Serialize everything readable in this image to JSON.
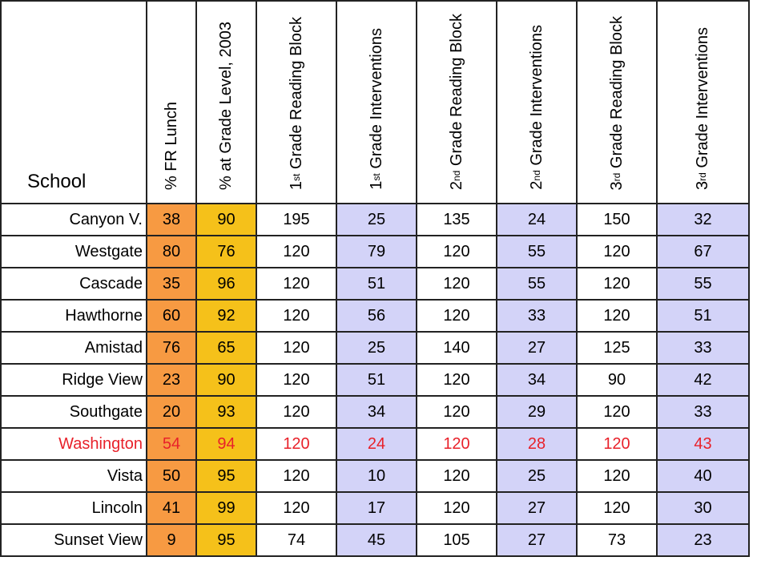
{
  "table": {
    "headers": {
      "school": "School",
      "fr_lunch": "% FR Lunch",
      "grade_level": "% at Grade Level, 2003",
      "g1_block": {
        "num": "1",
        "ord": "st",
        "text": "Grade Reading Block"
      },
      "g1_interv": {
        "num": "1",
        "ord": "st",
        "text": "Grade Interventions"
      },
      "g2_block": {
        "num": "2",
        "ord": "nd",
        "text": "Grade Reading Block"
      },
      "g2_interv": {
        "num": "2",
        "ord": "nd",
        "text": "Grade Interventions"
      },
      "g3_block": {
        "num": "3",
        "ord": "rd",
        "text": "Grade Reading Block"
      },
      "g3_interv": {
        "num": "3",
        "ord": "rd",
        "text": "Grade Interventions"
      }
    },
    "rows": [
      {
        "school": "Canyon V.",
        "values": [
          "38",
          "90",
          "195",
          "25",
          "135",
          "24",
          "150",
          "32"
        ]
      },
      {
        "school": "Westgate",
        "values": [
          "80",
          "76",
          "120",
          "79",
          "120",
          "55",
          "120",
          "67"
        ]
      },
      {
        "school": "Cascade",
        "values": [
          "35",
          "96",
          "120",
          "51",
          "120",
          "55",
          "120",
          "55"
        ]
      },
      {
        "school": "Hawthorne",
        "values": [
          "60",
          "92",
          "120",
          "56",
          "120",
          "33",
          "120",
          "51"
        ]
      },
      {
        "school": "Amistad",
        "values": [
          "76",
          "65",
          "120",
          "25",
          "140",
          "27",
          "125",
          "33"
        ]
      },
      {
        "school": "Ridge View",
        "values": [
          "23",
          "90",
          "120",
          "51",
          "120",
          "34",
          "90",
          "42"
        ]
      },
      {
        "school": "Southgate",
        "values": [
          "20",
          "93",
          "120",
          "34",
          "120",
          "29",
          "120",
          "33"
        ]
      },
      {
        "school": "Washington",
        "values": [
          "54",
          "94",
          "120",
          "24",
          "120",
          "28",
          "120",
          "43"
        ],
        "highlight": true
      },
      {
        "school": "Vista",
        "values": [
          "50",
          "95",
          "120",
          "10",
          "120",
          "25",
          "120",
          "40"
        ]
      },
      {
        "school": "Lincoln",
        "values": [
          "41",
          "99",
          "120",
          "17",
          "120",
          "27",
          "120",
          "30"
        ]
      },
      {
        "school": "Sunset View",
        "values": [
          "9",
          "95",
          "74",
          "45",
          "105",
          "27",
          "73",
          "23"
        ]
      }
    ],
    "colors": {
      "fr_lunch": "#f79a42",
      "grade_level": "#f5c11a",
      "interventions": "#d3d3f8",
      "highlight_text": "#e8212a"
    }
  }
}
